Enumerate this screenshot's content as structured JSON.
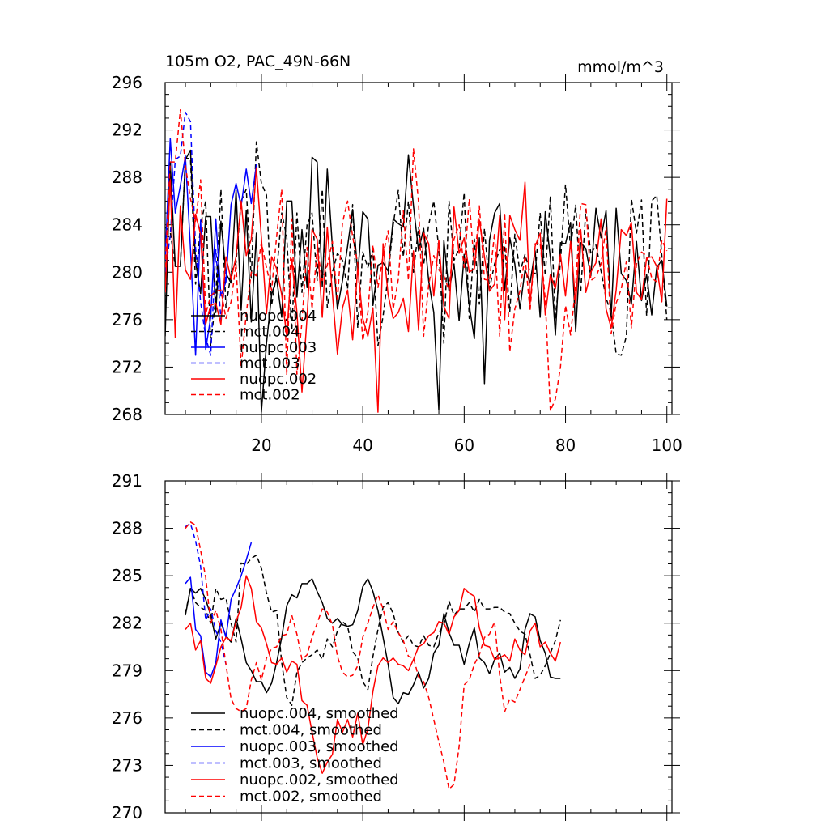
{
  "chart_data": [
    {
      "type": "line",
      "title_left": "105m O2, PAC_49N-66N",
      "title_right": "mmol/m^3",
      "xlabel": "",
      "ylabel": "",
      "xlim": [
        1,
        101
      ],
      "ylim": [
        268,
        296
      ],
      "xticks": [
        20,
        40,
        60,
        80,
        100
      ],
      "yticks": [
        268,
        272,
        276,
        280,
        284,
        288,
        292,
        296
      ],
      "x_tick_labels_shown": true,
      "legend": {
        "placement": "lower-left",
        "labels": [
          "nuopc.004",
          "mct.004",
          "nuopc.003",
          "mct.003",
          "nuopc.002",
          "mct.002"
        ]
      },
      "series": [
        {
          "name": "nuopc.004",
          "color": "#000000",
          "dash": "solid",
          "x_start": 1,
          "values": [
            274.6,
            289.3,
            280.5,
            280.5,
            289.5,
            290.3,
            280.9,
            278.2,
            284.7,
            284.7,
            276.6,
            284.3,
            279.9,
            279.1,
            286.9,
            276.8,
            285.2,
            275.8,
            283.3,
            268.2,
            274.0,
            278.1,
            279.5,
            276.2,
            286.0,
            286.0,
            277.9,
            283.6,
            278.7,
            289.7,
            289.3,
            278.8,
            288.7,
            282.1,
            276.9,
            279.3,
            282.2,
            285.3,
            279.9,
            285.1,
            284.5,
            277.2,
            280.6,
            280.8,
            280.1,
            284.5,
            284.1,
            283.8,
            289.9,
            285.6,
            281.8,
            283.7,
            279.3,
            276.6,
            268.4,
            282.7,
            278.4,
            280.7,
            275.9,
            281.5,
            277.2,
            274.4,
            282.9,
            270.6,
            282.7,
            285.0,
            285.8,
            278.5,
            282.9,
            280.7,
            276.9,
            280.2,
            279.1,
            281.8,
            276.2,
            285.1,
            281.2,
            274.7,
            282.5,
            282.4,
            284.2,
            275.0,
            282.5,
            282.0,
            279.7,
            285.4,
            282.9,
            285.2,
            276.2,
            285.4,
            279.9,
            279.3,
            277.3,
            282.6,
            277.6,
            279.8,
            276.4,
            280.4,
            281.0,
            277.1
          ]
        },
        {
          "name": "mct.004",
          "color": "#000000",
          "dash": "6,4",
          "x_start": 1,
          "values": [
            283.8,
            283.4,
            280.5,
            280.5,
            289.6,
            289.6,
            279.0,
            284.0,
            286.0,
            273.8,
            278.0,
            287.0,
            277.0,
            280.0,
            280.8,
            286.0,
            287.0,
            279.5,
            291.0,
            287.5,
            286.5,
            277.2,
            279.9,
            285.0,
            283.0,
            275.1,
            285.0,
            278.3,
            284.0,
            285.0,
            279.3,
            287.0,
            277.0,
            280.0,
            281.6,
            281.0,
            278.6,
            285.7,
            275.3,
            281.7,
            280.4,
            281.9,
            273.8,
            276.3,
            279.7,
            284.0,
            286.9,
            281.3,
            286.0,
            280.0,
            283.8,
            280.6,
            284.0,
            286.0,
            282.0,
            274.0,
            286.0,
            281.0,
            282.0,
            286.7,
            276.1,
            282.8,
            277.3,
            283.7,
            278.6,
            280.7,
            281.9,
            282.2,
            276.7,
            283.2,
            280.0,
            281.5,
            280.0,
            279.9,
            285.0,
            279.7,
            286.4,
            276.0,
            280.9,
            287.4,
            282.0,
            285.7,
            278.3,
            285.3,
            281.5,
            282.3,
            280.1,
            277.8,
            276.6,
            273.1,
            273.0,
            274.6,
            286.2,
            283.3,
            286.1,
            276.3,
            286.0,
            286.5,
            281.4,
            276.0
          ]
        },
        {
          "name": "nuopc.003",
          "color": "#0000ff",
          "dash": "solid",
          "x_start": 1,
          "values": [
            281.0,
            291.3,
            285.0,
            287.3,
            289.8,
            282.0,
            273.0,
            284.4,
            273.5,
            276.2,
            284.5,
            278.0,
            279.2,
            285.7,
            287.5,
            285.6,
            288.7,
            285.8,
            289.1
          ]
        },
        {
          "name": "mct.003",
          "color": "#0000ff",
          "dash": "6,4",
          "x_start": 1,
          "values": [
            280.0,
            283.1,
            289.5,
            289.8,
            293.5,
            292.7,
            282.0,
            277.5,
            274.5,
            273.0,
            281.9,
            276.0,
            280.1
          ]
        },
        {
          "name": "nuopc.002",
          "color": "#ff0000",
          "dash": "solid",
          "x_start": 1,
          "values": [
            278.3,
            287.8,
            274.5,
            285.6,
            280.2,
            279.4,
            284.9,
            283.2,
            275.6,
            277.2,
            277.4,
            275.6,
            281.3,
            279.4,
            281.3,
            286.0,
            281.4,
            282.8,
            288.8,
            282.9,
            276.5,
            281.3,
            280.3,
            278.1,
            274.6,
            281.1,
            276.6,
            269.9,
            276.2,
            283.6,
            282.8,
            276.2,
            283.8,
            278.2,
            273.1,
            277.0,
            278.5,
            274.3,
            280.4,
            276.1,
            274.6,
            277.0,
            268.2,
            282.4,
            278.1,
            276.1,
            276.6,
            277.8,
            275.0,
            281.8,
            275.1,
            283.3,
            282.4,
            278.0,
            282.7,
            277.1,
            276.1,
            285.5,
            281.6,
            282.9,
            280.0,
            280.3,
            284.4,
            281.3,
            278.4,
            279.0,
            284.8,
            276.0,
            284.8,
            283.6,
            282.7,
            287.6,
            277.3,
            282.2,
            283.3,
            276.4,
            279.8,
            278.6,
            281.5,
            278.0,
            282.6,
            277.4,
            283.6,
            278.3,
            280.0,
            280.8,
            284.5,
            276.9,
            275.3,
            278.5,
            283.6,
            283.1,
            284.2,
            278.3,
            277.7,
            281.2,
            281.3,
            280.5,
            277.5,
            286.2
          ]
        },
        {
          "name": "mct.002",
          "color": "#ff0000",
          "dash": "6,4",
          "x_start": 1,
          "values": [
            280.4,
            289.3,
            289.3,
            293.7,
            289.0,
            286.2,
            284.3,
            287.8,
            276.5,
            278.0,
            278.4,
            278.5,
            276.1,
            277.5,
            280.7,
            272.0,
            276.5,
            280.0,
            279.7,
            282.5,
            280.4,
            278.5,
            283.0,
            287.0,
            271.3,
            284.5,
            271.4,
            275.8,
            282.1,
            276.9,
            282.0,
            279.3,
            280.6,
            282.6,
            277.5,
            284.2,
            286.0,
            283.0,
            280.7,
            274.2,
            276.6,
            282.3,
            278.7,
            281.4,
            283.5,
            276.9,
            279.4,
            285.2,
            279.3,
            290.4,
            285.9,
            274.6,
            278.9,
            281.4,
            280.2,
            279.7,
            278.5,
            282.8,
            284.0,
            280.4,
            286.2,
            280.4,
            285.6,
            279.4,
            279.3,
            283.3,
            274.6,
            285.0,
            273.3,
            276.9,
            278.4,
            281.4,
            276.7,
            282.4,
            282.5,
            277.7,
            268.3,
            269.3,
            272.0,
            277.2,
            274.7,
            278.9,
            285.8,
            285.7,
            279.3,
            279.6,
            280.7,
            283.8,
            274.8,
            277.4,
            278.6,
            280.9,
            275.3,
            280.7,
            281.7,
            281.4,
            279.5,
            279.2,
            282.7,
            281.8
          ]
        }
      ]
    },
    {
      "type": "line",
      "title_left": "",
      "title_right": "",
      "xlabel": "",
      "ylabel": "",
      "xlim": [
        1,
        101
      ],
      "ylim": [
        270,
        291
      ],
      "xticks": [
        20,
        40,
        60,
        80,
        100
      ],
      "yticks": [
        270,
        273,
        276,
        279,
        282,
        285,
        288,
        291
      ],
      "x_tick_labels_shown": false,
      "legend": {
        "placement": "lower-left",
        "labels": [
          "nuopc.004, smoothed",
          "mct.004, smoothed",
          "nuopc.003, smoothed",
          "mct.003, smoothed",
          "nuopc.002, smoothed",
          "mct.002, smoothed"
        ]
      },
      "series": [
        {
          "name": "nuopc.004, smoothed",
          "color": "#000000",
          "dash": "solid",
          "x_start": 5,
          "values": [
            282.5,
            284.2,
            283.9,
            284.2,
            283.5,
            282.5,
            281.0,
            282.0,
            281.2,
            280.8,
            282.3,
            281.0,
            279.5,
            279.0,
            278.3,
            278.3,
            277.6,
            278.2,
            279.5,
            281.1,
            283.1,
            283.8,
            283.6,
            284.5,
            284.5,
            284.8,
            284.0,
            283.3,
            282.3,
            282.0,
            282.3,
            281.9,
            281.8,
            281.9,
            282.8,
            284.3,
            284.8,
            284.0,
            282.8,
            281.1,
            279.4,
            277.3,
            276.9,
            277.6,
            277.5,
            278.1,
            278.9,
            277.9,
            278.5,
            280.1,
            280.6,
            282.6,
            281.4,
            280.6,
            280.6,
            279.4,
            280.7,
            281.7,
            279.8,
            279.5,
            278.8,
            279.7,
            280.1,
            278.9,
            279.2,
            278.5,
            279.1,
            281.6,
            282.6,
            282.4,
            280.9,
            280.1,
            278.6,
            278.5,
            278.5
          ]
        },
        {
          "name": "mct.004, smoothed",
          "color": "#000000",
          "dash": "6,4",
          "x_start": 5,
          "values": [
            282.6,
            284.2,
            283.3,
            283.0,
            282.8,
            282.0,
            284.2,
            283.5,
            283.6,
            282.0,
            280.8,
            285.8,
            285.7,
            286.1,
            286.3,
            285.5,
            283.9,
            282.7,
            282.8,
            279.5,
            277.3,
            276.8,
            278.9,
            279.5,
            279.8,
            280.0,
            280.3,
            279.7,
            281.0,
            280.5,
            281.5,
            282.1,
            281.8,
            280.2,
            279.8,
            278.3,
            277.8,
            279.9,
            281.6,
            283.0,
            283.3,
            282.6,
            281.4,
            280.8,
            281.2,
            280.6,
            280.5,
            281.2,
            280.6,
            280.5,
            281.4,
            281.9,
            283.4,
            282.5,
            282.9,
            282.9,
            283.3,
            282.7,
            283.5,
            282.9,
            282.9,
            283.0,
            283.0,
            282.7,
            282.6,
            282.0,
            281.5,
            281.3,
            280.0,
            278.5,
            278.7,
            279.3,
            280.1,
            280.9,
            282.2
          ]
        },
        {
          "name": "nuopc.003, smoothed",
          "color": "#0000ff",
          "dash": "solid",
          "x_start": 5,
          "values": [
            284.5,
            284.9,
            281.6,
            281.2,
            278.9,
            278.6,
            279.5,
            282.2,
            281.1,
            283.5,
            284.2,
            285.0,
            286.0,
            287.1
          ]
        },
        {
          "name": "mct.003, smoothed",
          "color": "#0000ff",
          "dash": "6,4",
          "x_start": 5,
          "values": [
            288.1,
            288.3,
            287.2,
            285.6,
            282.2,
            282.9,
            281.5,
            280.8,
            279.4
          ]
        },
        {
          "name": "nuopc.002, smoothed",
          "color": "#ff0000",
          "dash": "solid",
          "x_start": 5,
          "values": [
            281.6,
            282.0,
            280.3,
            280.9,
            278.5,
            278.2,
            279.3,
            280.5,
            281.1,
            280.9,
            282.1,
            283.0,
            285.0,
            284.2,
            282.1,
            281.7,
            280.7,
            279.5,
            279.4,
            279.8,
            278.9,
            279.6,
            279.4,
            277.1,
            276.8,
            275.1,
            273.5,
            272.5,
            273.2,
            273.7,
            275.9,
            275.1,
            275.9,
            274.8,
            276.3,
            274.3,
            275.3,
            277.7,
            279.3,
            279.8,
            279.5,
            279.8,
            279.4,
            279.3,
            279.0,
            279.7,
            280.5,
            280.7,
            281.2,
            281.4,
            282.1,
            282.0,
            281.3,
            282.4,
            282.8,
            284.2,
            283.9,
            283.7,
            281.7,
            280.6,
            280.5,
            279.7,
            279.8,
            280.0,
            279.6,
            281.0,
            280.3,
            280.0,
            281.5,
            282.0,
            280.5,
            280.8,
            280.1,
            279.6,
            280.8
          ]
        },
        {
          "name": "mct.002, smoothed",
          "color": "#ff0000",
          "dash": "6,4",
          "x_start": 5,
          "values": [
            288.0,
            288.4,
            288.2,
            286.6,
            284.9,
            282.0,
            282.8,
            281.6,
            279.4,
            277.2,
            276.6,
            276.4,
            276.6,
            278.4,
            279.5,
            278.4,
            279.8,
            280.4,
            280.5,
            281.2,
            281.3,
            282.5,
            281.3,
            279.7,
            280.0,
            281.1,
            282.0,
            282.9,
            282.7,
            281.9,
            279.9,
            278.9,
            278.6,
            278.7,
            279.3,
            281.1,
            282.0,
            283.0,
            283.8,
            282.9,
            281.6,
            282.1,
            281.4,
            280.9,
            279.9,
            279.8,
            278.6,
            278.3,
            277.3,
            275.9,
            274.5,
            273.2,
            271.5,
            271.8,
            274.2,
            278.1,
            278.4,
            279.4,
            280.0,
            281.1,
            281.3,
            282.1,
            278.7,
            276.4,
            277.2,
            277.0,
            277.8,
            278.6,
            279.4
          ]
        }
      ]
    }
  ]
}
